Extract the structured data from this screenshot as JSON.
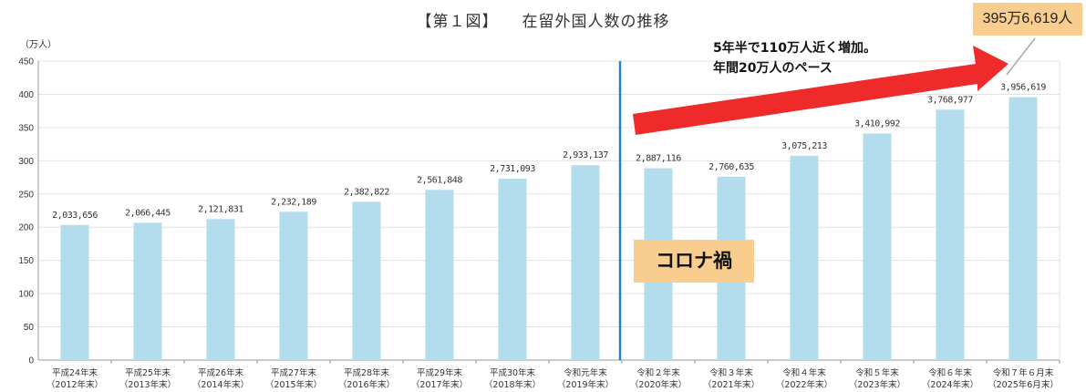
{
  "title_left": "【第１図】",
  "title_right": "在留外国人数の推移",
  "unit_label": "（万人）",
  "callout": "395万6,619人",
  "note_lines": [
    "5年半で110万人近く増加。",
    "年間20万人のペース"
  ],
  "covid_label": "コロナ禍",
  "colors": {
    "bar": "#b3dcec",
    "divider": "#1f84c4",
    "arrow": "#ee2a2a",
    "callout_bg": "#f8cd8d"
  },
  "chart_data": {
    "type": "bar",
    "title": "【第１図】 在留外国人数の推移",
    "ylabel": "（万人）",
    "ylim": [
      0,
      450
    ],
    "yticks": [
      0,
      50,
      100,
      150,
      200,
      250,
      300,
      350,
      400,
      450
    ],
    "grid": true,
    "categories": [
      [
        "平成24年末",
        "（2012年末）"
      ],
      [
        "平成25年末",
        "（2013年末）"
      ],
      [
        "平成26年末",
        "（2014年末）"
      ],
      [
        "平成27年末",
        "（2015年末）"
      ],
      [
        "平成28年末",
        "（2016年末）"
      ],
      [
        "平成29年末",
        "（2017年末）"
      ],
      [
        "平成30年末",
        "（2018年末）"
      ],
      [
        "令和元年末",
        "（2019年末）"
      ],
      [
        "令和２年末",
        "（2020年末）"
      ],
      [
        "令和３年末",
        "（2021年末）"
      ],
      [
        "令和４年末",
        "（2022年末）"
      ],
      [
        "令和５年末",
        "（2023年末）"
      ],
      [
        "令和６年末",
        "（2024年末）"
      ],
      [
        "令和７年６月末",
        "（2025年6月末）"
      ]
    ],
    "values": [
      2033656,
      2066445,
      2121831,
      2232189,
      2382822,
      2561848,
      2731093,
      2933137,
      2887116,
      2760635,
      3075213,
      3410992,
      3768977,
      3956619
    ],
    "value_labels": [
      "2,033,656",
      "2,066,445",
      "2,121,831",
      "2,232,189",
      "2,382,822",
      "2,561,848",
      "2,731,093",
      "2,933,137",
      "2,887,116",
      "2,760,635",
      "3,075,213",
      "3,410,992",
      "3,768,977",
      "3,956,619"
    ]
  }
}
